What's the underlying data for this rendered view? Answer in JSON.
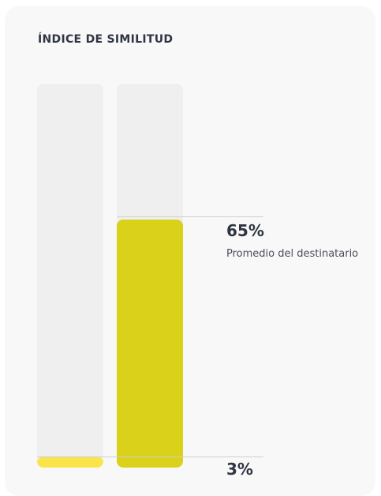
{
  "widget": {
    "title": "ÍNDICE DE SIMILITUD"
  },
  "bars": [
    {
      "name": "bar-recipient-own",
      "value_percent": 3,
      "label": "3%",
      "color": "#fbe44a"
    },
    {
      "name": "bar-recipient-average",
      "value_percent": 65,
      "label": "65%",
      "color": "#d9d11a"
    }
  ],
  "markers": {
    "average": {
      "label": "65%",
      "caption": "Promedio del destinatario"
    },
    "own": {
      "label": "3%"
    }
  }
}
